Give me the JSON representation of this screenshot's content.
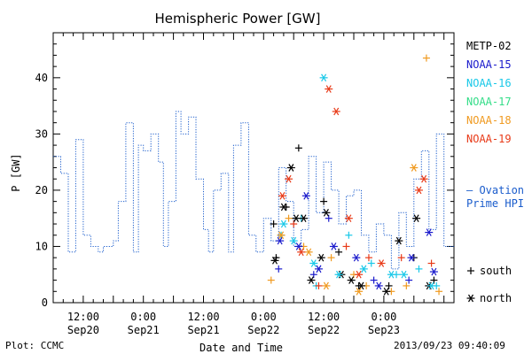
{
  "chart_data": {
    "type": "scatter",
    "title": "Hemispheric Power [GW]",
    "xlabel": "Date and Time",
    "ylabel": "P [GW]",
    "ylim": [
      0,
      48
    ],
    "xlim": [
      "2013-09-20 06:00",
      "2013-09-23 14:00"
    ],
    "yticks": [
      0,
      10,
      20,
      30,
      40
    ],
    "xticks": [
      {
        "time": "2013-09-20 12:00",
        "line1": "12:00",
        "line2": "Sep20"
      },
      {
        "time": "2013-09-21 00:00",
        "line1": "0:00",
        "line2": "Sep21"
      },
      {
        "time": "2013-09-21 12:00",
        "line1": "12:00",
        "line2": "Sep21"
      },
      {
        "time": "2013-09-22 00:00",
        "line1": "0:00",
        "line2": "Sep22"
      },
      {
        "time": "2013-09-22 12:00",
        "line1": "12:00",
        "line2": "Sep22"
      },
      {
        "time": "2013-09-23 00:00",
        "line1": "0:00",
        "line2": "Sep23"
      }
    ],
    "grid": false,
    "legend": {
      "position": "right",
      "satellites": [
        {
          "name": "METP-02",
          "color": "#000000"
        },
        {
          "name": "NOAA-15",
          "color": "#1a1acc"
        },
        {
          "name": "NOAA-16",
          "color": "#18c8e8"
        },
        {
          "name": "NOAA-17",
          "color": "#33dd88"
        },
        {
          "name": "NOAA-18",
          "color": "#f09a20"
        },
        {
          "name": "NOAA-19",
          "color": "#e83a18"
        }
      ],
      "ovation": {
        "line1": "— Ovation",
        "line2": "Prime HPI",
        "color": "#1a5ccc"
      },
      "markers": [
        {
          "symbol": "+",
          "label": "south"
        },
        {
          "symbol": "*",
          "label": "north"
        }
      ]
    },
    "ovation_series": {
      "name": "Ovation Prime HPI",
      "color": "#1a5ccc",
      "x": [
        "2013-09-20 06:00",
        "2013-09-20 07:30",
        "2013-09-20 09:00",
        "2013-09-20 10:30",
        "2013-09-20 12:00",
        "2013-09-20 13:30",
        "2013-09-20 15:00",
        "2013-09-20 16:00",
        "2013-09-20 18:00",
        "2013-09-20 19:00",
        "2013-09-20 20:30",
        "2013-09-20 22:00",
        "2013-09-20 23:00",
        "2013-09-21 00:00",
        "2013-09-21 01:30",
        "2013-09-21 03:00",
        "2013-09-21 04:00",
        "2013-09-21 05:00",
        "2013-09-21 06:30",
        "2013-09-21 07:30",
        "2013-09-21 09:00",
        "2013-09-21 10:30",
        "2013-09-21 12:00",
        "2013-09-21 13:00",
        "2013-09-21 14:00",
        "2013-09-21 15:30",
        "2013-09-21 17:00",
        "2013-09-21 18:00",
        "2013-09-21 19:30",
        "2013-09-21 21:00",
        "2013-09-21 22:30",
        "2013-09-22 00:00",
        "2013-09-22 01:30",
        "2013-09-22 03:00",
        "2013-09-22 04:30",
        "2013-09-22 06:00",
        "2013-09-22 07:30",
        "2013-09-22 09:00",
        "2013-09-22 10:30",
        "2013-09-22 12:00",
        "2013-09-22 13:30",
        "2013-09-22 15:00",
        "2013-09-22 16:30",
        "2013-09-22 18:00",
        "2013-09-22 19:30",
        "2013-09-22 21:00",
        "2013-09-22 22:30",
        "2013-09-23 00:00",
        "2013-09-23 01:30",
        "2013-09-23 03:00",
        "2013-09-23 04:30",
        "2013-09-23 06:00",
        "2013-09-23 07:30",
        "2013-09-23 09:00",
        "2013-09-23 10:30",
        "2013-09-23 12:00"
      ],
      "y": [
        26,
        23,
        9,
        29,
        12,
        10,
        9,
        10,
        11,
        18,
        32,
        9,
        28,
        27,
        30,
        25,
        10,
        18,
        34,
        30,
        33,
        22,
        13,
        9,
        20,
        23,
        9,
        28,
        32,
        12,
        9,
        15,
        11,
        24,
        18,
        10,
        13,
        26,
        16,
        25,
        20,
        14,
        19,
        20,
        12,
        9,
        14,
        12,
        6,
        16,
        10,
        22,
        27,
        13,
        30,
        10
      ]
    },
    "south_points": [
      {
        "sat": "METP-02",
        "x": "2013-09-22 02:00",
        "y": 14
      },
      {
        "sat": "METP-02",
        "x": "2013-09-22 02:30",
        "y": 8
      },
      {
        "sat": "METP-02",
        "x": "2013-09-22 04:30",
        "y": 17
      },
      {
        "sat": "METP-02",
        "x": "2013-09-22 07:00",
        "y": 27.5
      },
      {
        "sat": "METP-02",
        "x": "2013-09-22 12:00",
        "y": 18
      },
      {
        "sat": "METP-02",
        "x": "2013-09-22 15:00",
        "y": 9
      },
      {
        "sat": "METP-02",
        "x": "2013-09-22 19:00",
        "y": 3
      },
      {
        "sat": "METP-02",
        "x": "2013-09-23 01:00",
        "y": 3
      },
      {
        "sat": "METP-02",
        "x": "2013-09-23 06:00",
        "y": 8
      },
      {
        "sat": "METP-02",
        "x": "2013-09-23 10:00",
        "y": 4
      },
      {
        "sat": "NOAA-15",
        "x": "2013-09-22 03:00",
        "y": 6
      },
      {
        "sat": "NOAA-15",
        "x": "2013-09-22 10:00",
        "y": 5
      },
      {
        "sat": "NOAA-15",
        "x": "2013-09-22 13:00",
        "y": 15
      },
      {
        "sat": "NOAA-15",
        "x": "2013-09-22 22:00",
        "y": 4
      },
      {
        "sat": "NOAA-15",
        "x": "2013-09-23 05:00",
        "y": 4
      },
      {
        "sat": "NOAA-16",
        "x": "2013-09-22 03:30",
        "y": 12
      },
      {
        "sat": "NOAA-16",
        "x": "2013-09-22 07:30",
        "y": 15
      },
      {
        "sat": "NOAA-16",
        "x": "2013-09-22 10:30",
        "y": 3
      },
      {
        "sat": "NOAA-16",
        "x": "2013-09-22 17:00",
        "y": 12
      },
      {
        "sat": "NOAA-16",
        "x": "2013-09-22 21:30",
        "y": 7
      },
      {
        "sat": "NOAA-16",
        "x": "2013-09-23 02:30",
        "y": 5
      },
      {
        "sat": "NOAA-16",
        "x": "2013-09-23 07:00",
        "y": 6
      },
      {
        "sat": "NOAA-16",
        "x": "2013-09-23 10:30",
        "y": 3
      },
      {
        "sat": "NOAA-18",
        "x": "2013-09-22 01:30",
        "y": 4
      },
      {
        "sat": "NOAA-18",
        "x": "2013-09-22 05:00",
        "y": 15
      },
      {
        "sat": "NOAA-18",
        "x": "2013-09-22 08:00",
        "y": 10
      },
      {
        "sat": "NOAA-18",
        "x": "2013-09-22 13:30",
        "y": 8
      },
      {
        "sat": "NOAA-18",
        "x": "2013-09-22 18:00",
        "y": 5
      },
      {
        "sat": "NOAA-18",
        "x": "2013-09-22 20:30",
        "y": 3
      },
      {
        "sat": "NOAA-18",
        "x": "2013-09-23 01:30",
        "y": 2
      },
      {
        "sat": "NOAA-18",
        "x": "2013-09-23 04:30",
        "y": 3
      },
      {
        "sat": "NOAA-18",
        "x": "2013-09-23 08:30",
        "y": 43.5
      },
      {
        "sat": "NOAA-18",
        "x": "2013-09-23 11:00",
        "y": 2
      },
      {
        "sat": "NOAA-19",
        "x": "2013-09-22 06:00",
        "y": 14
      },
      {
        "sat": "NOAA-19",
        "x": "2013-09-22 11:00",
        "y": 3
      },
      {
        "sat": "NOAA-19",
        "x": "2013-09-22 16:30",
        "y": 10
      },
      {
        "sat": "NOAA-19",
        "x": "2013-09-22 21:00",
        "y": 8
      },
      {
        "sat": "NOAA-19",
        "x": "2013-09-23 03:30",
        "y": 8
      },
      {
        "sat": "NOAA-19",
        "x": "2013-09-23 09:30",
        "y": 7
      }
    ],
    "north_points": [
      {
        "sat": "METP-02",
        "x": "2013-09-22 02:15",
        "y": 7.5
      },
      {
        "sat": "METP-02",
        "x": "2013-09-22 04:00",
        "y": 17
      },
      {
        "sat": "METP-02",
        "x": "2013-09-22 05:30",
        "y": 24
      },
      {
        "sat": "METP-02",
        "x": "2013-09-22 06:30",
        "y": 15
      },
      {
        "sat": "METP-02",
        "x": "2013-09-22 08:00",
        "y": 15
      },
      {
        "sat": "METP-02",
        "x": "2013-09-22 09:30",
        "y": 4
      },
      {
        "sat": "METP-02",
        "x": "2013-09-22 11:30",
        "y": 8
      },
      {
        "sat": "METP-02",
        "x": "2013-09-22 12:30",
        "y": 16
      },
      {
        "sat": "METP-02",
        "x": "2013-09-22 15:30",
        "y": 5
      },
      {
        "sat": "METP-02",
        "x": "2013-09-22 17:30",
        "y": 4
      },
      {
        "sat": "METP-02",
        "x": "2013-09-22 19:30",
        "y": 3
      },
      {
        "sat": "METP-02",
        "x": "2013-09-23 00:30",
        "y": 2
      },
      {
        "sat": "METP-02",
        "x": "2013-09-23 03:00",
        "y": 11
      },
      {
        "sat": "METP-02",
        "x": "2013-09-23 06:30",
        "y": 15
      },
      {
        "sat": "METP-02",
        "x": "2013-09-23 09:00",
        "y": 3
      },
      {
        "sat": "NOAA-15",
        "x": "2013-09-22 03:15",
        "y": 11
      },
      {
        "sat": "NOAA-15",
        "x": "2013-09-22 07:00",
        "y": 10
      },
      {
        "sat": "NOAA-15",
        "x": "2013-09-22 08:30",
        "y": 19
      },
      {
        "sat": "NOAA-15",
        "x": "2013-09-22 11:00",
        "y": 6
      },
      {
        "sat": "NOAA-15",
        "x": "2013-09-22 14:00",
        "y": 10
      },
      {
        "sat": "NOAA-15",
        "x": "2013-09-22 18:30",
        "y": 8
      },
      {
        "sat": "NOAA-15",
        "x": "2013-09-22 23:00",
        "y": 3
      },
      {
        "sat": "NOAA-15",
        "x": "2013-09-23 05:30",
        "y": 8
      },
      {
        "sat": "NOAA-15",
        "x": "2013-09-23 09:00",
        "y": 12.5
      },
      {
        "sat": "NOAA-15",
        "x": "2013-09-23 10:00",
        "y": 5.5
      },
      {
        "sat": "NOAA-16",
        "x": "2013-09-22 04:00",
        "y": 14
      },
      {
        "sat": "NOAA-16",
        "x": "2013-09-22 06:00",
        "y": 11
      },
      {
        "sat": "NOAA-16",
        "x": "2013-09-22 10:00",
        "y": 7
      },
      {
        "sat": "NOAA-16",
        "x": "2013-09-22 12:00",
        "y": 40
      },
      {
        "sat": "NOAA-16",
        "x": "2013-09-22 15:00",
        "y": 5
      },
      {
        "sat": "NOAA-16",
        "x": "2013-09-22 20:00",
        "y": 6
      },
      {
        "sat": "NOAA-16",
        "x": "2013-09-23 01:30",
        "y": 5
      },
      {
        "sat": "NOAA-16",
        "x": "2013-09-23 04:00",
        "y": 5
      },
      {
        "sat": "NOAA-16",
        "x": "2013-09-23 09:30",
        "y": 3
      },
      {
        "sat": "NOAA-18",
        "x": "2013-09-22 03:30",
        "y": 12
      },
      {
        "sat": "NOAA-18",
        "x": "2013-09-22 09:00",
        "y": 9
      },
      {
        "sat": "NOAA-18",
        "x": "2013-09-22 12:30",
        "y": 3
      },
      {
        "sat": "NOAA-18",
        "x": "2013-09-22 19:00",
        "y": 2
      },
      {
        "sat": "NOAA-18",
        "x": "2013-09-23 06:00",
        "y": 24
      },
      {
        "sat": "NOAA-19",
        "x": "2013-09-22 03:45",
        "y": 19
      },
      {
        "sat": "NOAA-19",
        "x": "2013-09-22 05:00",
        "y": 22
      },
      {
        "sat": "NOAA-19",
        "x": "2013-09-22 07:30",
        "y": 9
      },
      {
        "sat": "NOAA-19",
        "x": "2013-09-22 13:00",
        "y": 38
      },
      {
        "sat": "NOAA-19",
        "x": "2013-09-22 14:30",
        "y": 34
      },
      {
        "sat": "NOAA-19",
        "x": "2013-09-22 17:00",
        "y": 15
      },
      {
        "sat": "NOAA-19",
        "x": "2013-09-22 19:00",
        "y": 5
      },
      {
        "sat": "NOAA-19",
        "x": "2013-09-22 23:30",
        "y": 7
      },
      {
        "sat": "NOAA-19",
        "x": "2013-09-23 07:00",
        "y": 20
      },
      {
        "sat": "NOAA-19",
        "x": "2013-09-23 08:00",
        "y": 22
      }
    ]
  },
  "footer": {
    "plot_by": "Plot: CCMC",
    "timestamp": "2013/09/23 09:40:09"
  }
}
